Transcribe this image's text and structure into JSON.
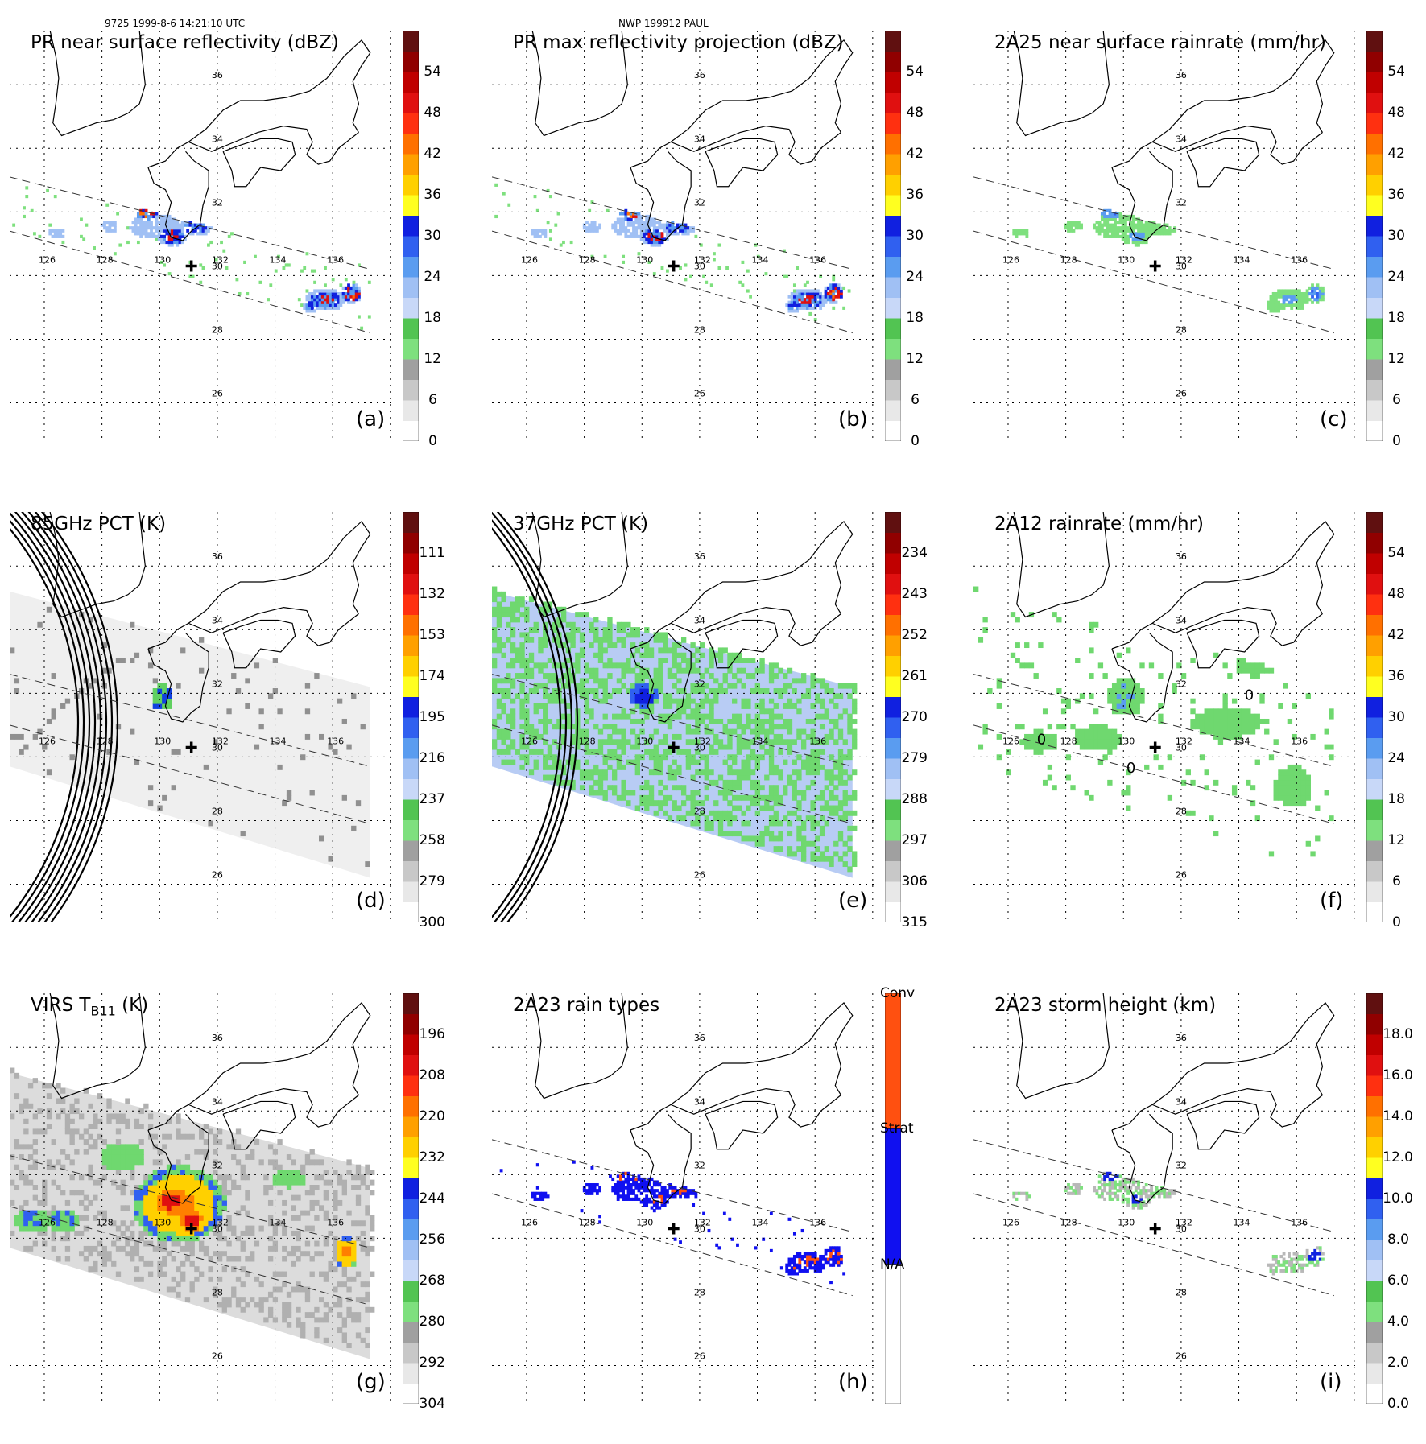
{
  "header": {
    "left": "9725 1999-8-6 14:21:10 UTC",
    "center": "NWP 199912 PAUL"
  },
  "panels": [
    {
      "id": "a",
      "title": "PR near surface reflectivity (dBZ)",
      "label": "(a)",
      "ticks": [
        "54",
        "48",
        "42",
        "36",
        "30",
        "24",
        "18",
        "12",
        "6",
        "0"
      ],
      "field": "pr",
      "swath": "pr"
    },
    {
      "id": "b",
      "title": "PR max reflectivity projection (dBZ)",
      "label": "(b)",
      "ticks": [
        "54",
        "48",
        "42",
        "36",
        "30",
        "24",
        "18",
        "12",
        "6",
        "0"
      ],
      "field": "pr",
      "swath": "pr"
    },
    {
      "id": "c",
      "title": "2A25 near surface rainrate (mm/hr)",
      "label": "(c)",
      "ticks": [
        "54",
        "48",
        "42",
        "36",
        "30",
        "24",
        "18",
        "12",
        "6",
        "0"
      ],
      "field": "rain",
      "swath": "pr"
    },
    {
      "id": "d",
      "title": "85GHz PCT (K)",
      "label": "(d)",
      "ticks": [
        "111",
        "132",
        "153",
        "174",
        "195",
        "216",
        "237",
        "258",
        "279",
        "300"
      ],
      "field": "pct85",
      "swath": "tmi"
    },
    {
      "id": "e",
      "title": "37GHz PCT (K)",
      "label": "(e)",
      "ticks": [
        "234",
        "243",
        "252",
        "261",
        "270",
        "279",
        "288",
        "297",
        "306",
        "315"
      ],
      "field": "pct37",
      "swath": "tmi"
    },
    {
      "id": "f",
      "title": "2A12 rainrate (mm/hr)",
      "label": "(f)",
      "ticks": [
        "54",
        "48",
        "42",
        "36",
        "30",
        "24",
        "18",
        "12",
        "6",
        "0"
      ],
      "field": "tmirain",
      "swath": "tmi"
    },
    {
      "id": "g",
      "title": "VIRS T",
      "title_sub": "B11",
      "title_after": " (K)",
      "label": "(g)",
      "ticks": [
        "196",
        "208",
        "220",
        "232",
        "244",
        "256",
        "268",
        "280",
        "292",
        "304"
      ],
      "field": "virs",
      "swath": "tmi"
    },
    {
      "id": "h",
      "title": "2A23 rain types",
      "label": "(h)",
      "ticks": [
        "Conv",
        "Strat",
        "N/A"
      ],
      "field": "types",
      "swath": "pr"
    },
    {
      "id": "i",
      "title": "2A23 storm height (km)",
      "label": "(i)",
      "ticks": [
        "18.0",
        "16.0",
        "14.0",
        "12.0",
        "10.0",
        "8.0",
        "6.0",
        "4.0",
        "2.0",
        "0.0"
      ],
      "field": "height",
      "swath": "pr"
    }
  ],
  "map": {
    "lon_labels": [
      "126",
      "128",
      "130",
      "132",
      "134",
      "136"
    ],
    "lat_labels": [
      "36",
      "34",
      "32",
      "30",
      "28",
      "26"
    ],
    "contour_label": "0"
  },
  "colors": {
    "scale": [
      "#ffffff",
      "#e8e8e8",
      "#c8c8c8",
      "#a0a0a0",
      "#7ee07e",
      "#52c452",
      "#c8d8f8",
      "#a0c0f4",
      "#5a9cf0",
      "#3060f0",
      "#1020e0",
      "#ffff20",
      "#ffd000",
      "#ffa000",
      "#ff7000",
      "#ff3010",
      "#e01010",
      "#c00000",
      "#900000",
      "#601010"
    ],
    "conv": "#ff5010",
    "strat": "#1010f0"
  }
}
